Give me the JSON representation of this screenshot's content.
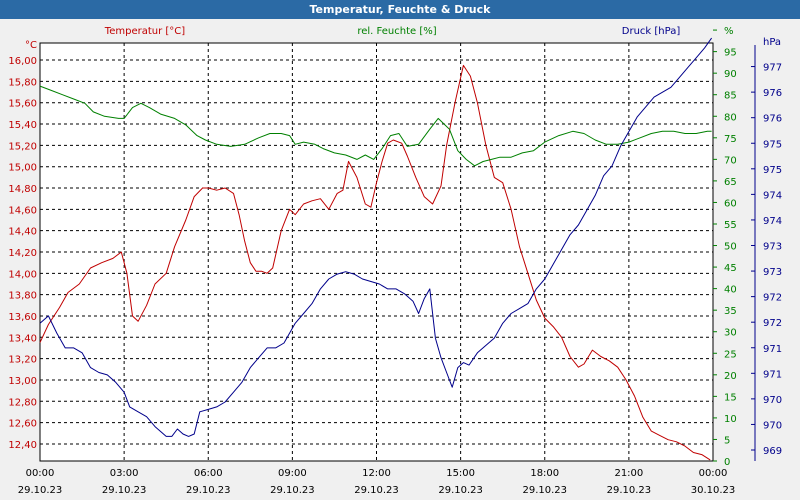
{
  "window": {
    "title": "Temperatur, Feuchte & Druck"
  },
  "colors": {
    "temperature": "#c00000",
    "humidity": "#008000",
    "pressure": "#00008b",
    "grid": "#000000",
    "background": "#ffffff",
    "title_bar": "#2b6aa5"
  },
  "chart_data": {
    "type": "line",
    "title": "Temperatur, Feuchte & Druck",
    "grid": true,
    "x": {
      "ticks": [
        "00:00",
        "03:00",
        "06:00",
        "09:00",
        "12:00",
        "15:00",
        "18:00",
        "21:00",
        "00:00"
      ],
      "dates": [
        "29.10.23",
        "29.10.23",
        "29.10.23",
        "29.10.23",
        "29.10.23",
        "29.10.23",
        "29.10.23",
        "29.10.23",
        "30.10.23"
      ],
      "unit": "hours since 29.10.23 00:00",
      "range": [
        0,
        24
      ]
    },
    "axes": {
      "left": {
        "unit": "°C",
        "range": [
          12.24,
          16.16
        ],
        "ticks": [
          "12,40",
          "12,60",
          "12,80",
          "13,00",
          "13,20",
          "13,40",
          "13,60",
          "13,80",
          "14,00",
          "14,20",
          "14,40",
          "14,60",
          "14,80",
          "15,00",
          "15,20",
          "15,40",
          "15,60",
          "15,80",
          "16,00"
        ]
      },
      "middle": {
        "unit": "%",
        "range": [
          0,
          97
        ],
        "ticks": [
          "0",
          "5",
          "10",
          "15",
          "20",
          "25",
          "30",
          "35",
          "40",
          "45",
          "50",
          "55",
          "60",
          "65",
          "70",
          "75",
          "80",
          "85",
          "90",
          "95",
          "%"
        ]
      },
      "right": {
        "unit": "hPa",
        "range": [
          969,
          977.5
        ],
        "ticks": [
          "969",
          "970",
          "970",
          "971",
          "971",
          "972",
          "972",
          "973",
          "973",
          "974",
          "974",
          "975",
          "975",
          "976",
          "976",
          "977",
          "hPa"
        ]
      }
    },
    "series": [
      {
        "name": "Temperatur [°C]",
        "axis": "left",
        "x": [
          0,
          0.3,
          0.7,
          1.0,
          1.4,
          1.8,
          2.2,
          2.6,
          2.9,
          3.1,
          3.3,
          3.5,
          3.8,
          4.1,
          4.5,
          4.8,
          5.2,
          5.5,
          5.8,
          6.0,
          6.3,
          6.6,
          6.9,
          7.1,
          7.3,
          7.5,
          7.7,
          7.9,
          8.1,
          8.3,
          8.6,
          8.9,
          9.1,
          9.4,
          9.7,
          10.0,
          10.3,
          10.6,
          10.8,
          11.0,
          11.3,
          11.6,
          11.8,
          12.0,
          12.2,
          12.4,
          12.6,
          12.9,
          13.1,
          13.4,
          13.7,
          14.0,
          14.3,
          14.5,
          14.8,
          15.1,
          15.35,
          15.6,
          15.9,
          16.2,
          16.5,
          16.8,
          17.1,
          17.4,
          17.7,
          18.0,
          18.3,
          18.6,
          18.9,
          19.2,
          19.4,
          19.7,
          20.0,
          20.3,
          20.6,
          20.9,
          21.2,
          21.5,
          21.8,
          22.1,
          22.4,
          22.7,
          23.0,
          23.3,
          23.6,
          23.9
        ],
        "values": [
          13.35,
          13.52,
          13.68,
          13.82,
          13.9,
          14.05,
          14.1,
          14.14,
          14.2,
          14.0,
          13.6,
          13.55,
          13.7,
          13.9,
          14.0,
          14.25,
          14.5,
          14.72,
          14.8,
          14.8,
          14.78,
          14.8,
          14.75,
          14.55,
          14.3,
          14.1,
          14.02,
          14.02,
          14.0,
          14.05,
          14.4,
          14.6,
          14.55,
          14.65,
          14.68,
          14.7,
          14.6,
          14.75,
          14.78,
          15.05,
          14.9,
          14.65,
          14.62,
          14.85,
          15.05,
          15.22,
          15.25,
          15.22,
          15.1,
          14.9,
          14.72,
          14.65,
          14.82,
          15.2,
          15.6,
          15.95,
          15.85,
          15.6,
          15.2,
          14.9,
          14.85,
          14.6,
          14.25,
          14.0,
          13.75,
          13.58,
          13.5,
          13.4,
          13.22,
          13.12,
          13.15,
          13.28,
          13.22,
          13.18,
          13.12,
          13.0,
          12.85,
          12.65,
          12.52,
          12.48,
          12.44,
          12.42,
          12.38,
          12.32,
          12.3,
          12.25
        ]
      },
      {
        "name": "rel. Feuchte [%]",
        "axis": "middle",
        "x": [
          0,
          0.4,
          0.8,
          1.2,
          1.6,
          1.9,
          2.3,
          2.8,
          3.0,
          3.3,
          3.6,
          3.9,
          4.3,
          4.8,
          5.2,
          5.6,
          5.9,
          6.3,
          6.8,
          7.3,
          7.8,
          8.2,
          8.6,
          8.9,
          9.1,
          9.4,
          9.8,
          10.1,
          10.5,
          10.9,
          11.3,
          11.6,
          11.9,
          12.2,
          12.5,
          12.8,
          13.1,
          13.5,
          13.9,
          14.2,
          14.6,
          14.9,
          15.2,
          15.5,
          15.8,
          16.1,
          16.4,
          16.8,
          17.2,
          17.6,
          18.0,
          18.5,
          19.0,
          19.4,
          19.8,
          20.2,
          20.6,
          21.0,
          21.4,
          21.8,
          22.2,
          22.6,
          23.0,
          23.4,
          23.8,
          23.95
        ],
        "values": [
          87,
          86,
          85,
          84,
          83,
          81,
          80,
          79.5,
          79.5,
          82,
          83,
          82,
          80.5,
          79.5,
          78,
          75.5,
          74.5,
          73.5,
          73,
          73.5,
          75,
          76,
          76,
          75.5,
          73.5,
          74,
          73.5,
          72.5,
          71.5,
          71,
          70,
          71,
          70,
          72.5,
          75.5,
          76,
          73,
          73.5,
          77,
          79.5,
          77,
          72,
          70,
          68.5,
          69.5,
          70,
          70.5,
          70.5,
          71.5,
          72,
          74,
          75.5,
          76.5,
          76,
          74.5,
          73.5,
          73.5,
          74,
          75,
          76,
          76.5,
          76.5,
          76,
          76,
          76.5,
          76.5
        ]
      },
      {
        "name": "Druck [hPa]",
        "axis": "right",
        "x": [
          0,
          0.3,
          0.6,
          0.9,
          1.2,
          1.5,
          1.8,
          2.1,
          2.4,
          2.7,
          3.0,
          3.2,
          3.5,
          3.8,
          4.1,
          4.3,
          4.5,
          4.7,
          4.9,
          5.1,
          5.3,
          5.5,
          5.7,
          6.0,
          6.3,
          6.6,
          6.9,
          7.2,
          7.5,
          7.8,
          8.1,
          8.4,
          8.7,
          8.9,
          9.1,
          9.4,
          9.7,
          10.0,
          10.3,
          10.6,
          10.9,
          11.2,
          11.5,
          11.8,
          12.1,
          12.4,
          12.7,
          13.0,
          13.3,
          13.5,
          13.7,
          13.9,
          14.1,
          14.3,
          14.5,
          14.7,
          14.9,
          15.1,
          15.3,
          15.6,
          15.9,
          16.2,
          16.5,
          16.8,
          17.1,
          17.4,
          17.7,
          18.0,
          18.3,
          18.6,
          18.9,
          19.2,
          19.5,
          19.8,
          20.1,
          20.4,
          20.7,
          21.0,
          21.3,
          21.6,
          21.9,
          22.2,
          22.5,
          22.8,
          23.1,
          23.4,
          23.7,
          23.95
        ],
        "values": [
          971.8,
          971.95,
          971.6,
          971.3,
          971.3,
          971.2,
          970.9,
          970.8,
          970.75,
          970.6,
          970.4,
          970.1,
          970.0,
          969.9,
          969.7,
          969.6,
          969.5,
          969.5,
          969.65,
          969.55,
          969.5,
          969.55,
          970.0,
          970.05,
          970.1,
          970.2,
          970.4,
          970.6,
          970.9,
          971.1,
          971.3,
          971.3,
          971.4,
          971.6,
          971.8,
          972.0,
          972.2,
          972.5,
          972.7,
          972.8,
          972.85,
          972.8,
          972.7,
          972.65,
          972.6,
          972.5,
          972.5,
          972.4,
          972.25,
          972.0,
          972.3,
          972.5,
          971.5,
          971.1,
          970.8,
          970.5,
          970.9,
          971.0,
          970.95,
          971.2,
          971.35,
          971.5,
          971.8,
          972.0,
          972.1,
          972.2,
          972.5,
          972.7,
          973.0,
          973.3,
          973.6,
          973.8,
          974.1,
          974.4,
          974.8,
          975.0,
          975.4,
          975.7,
          976.0,
          976.2,
          976.4,
          976.5,
          976.6,
          976.8,
          977.0,
          977.2,
          977.4,
          977.6
        ]
      }
    ]
  }
}
